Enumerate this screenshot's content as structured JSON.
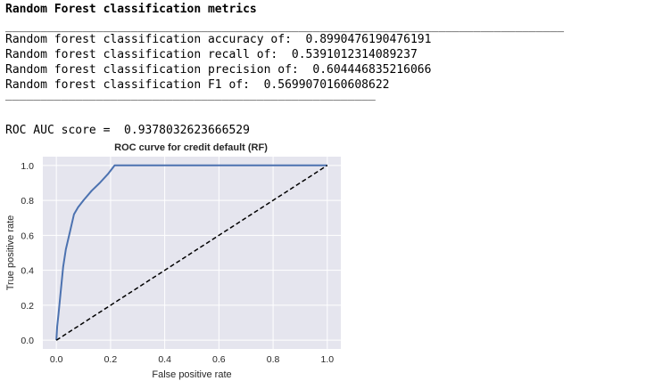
{
  "output": {
    "heading": "Random Forest classification metrics",
    "rule_long": "________________________________________________________________________________",
    "lines": [
      "Random forest classification accuracy of:  0.8990476190476191",
      "Random forest classification recall of:  0.5391012314089237",
      "Random forest classification precision of:  0.604446835216066",
      "Random forest classification F1 of:  0.5699070160608622"
    ],
    "rule_short": "_____________________________________________________",
    "roc_auc": "ROC AUC score =  0.9378032623666529"
  },
  "chart_data": {
    "type": "line",
    "title": "ROC curve for credit default (RF)",
    "xlabel": "False positive rate",
    "ylabel": "True positive rate",
    "xlim": [
      -0.05,
      1.05
    ],
    "ylim": [
      -0.05,
      1.05
    ],
    "xticks": [
      "0.0",
      "0.2",
      "0.4",
      "0.6",
      "0.8",
      "1.0"
    ],
    "yticks": [
      "0.0",
      "0.2",
      "0.4",
      "0.6",
      "0.8",
      "1.0"
    ],
    "grid": true,
    "series": [
      {
        "color": "#4c72b0",
        "style": "solid",
        "x": [
          0.0,
          0.003,
          0.008,
          0.015,
          0.025,
          0.035,
          0.05,
          0.065,
          0.08,
          0.1,
          0.13,
          0.16,
          0.19,
          0.215,
          0.25,
          0.5,
          0.75,
          1.0
        ],
        "y": [
          0.0,
          0.08,
          0.15,
          0.26,
          0.42,
          0.52,
          0.62,
          0.72,
          0.76,
          0.8,
          0.855,
          0.9,
          0.95,
          1.0,
          1.0,
          1.0,
          1.0,
          1.0
        ]
      },
      {
        "color": "#000000",
        "style": "dashed",
        "x": [
          0.0,
          1.0
        ],
        "y": [
          0.0,
          1.0
        ]
      }
    ]
  }
}
